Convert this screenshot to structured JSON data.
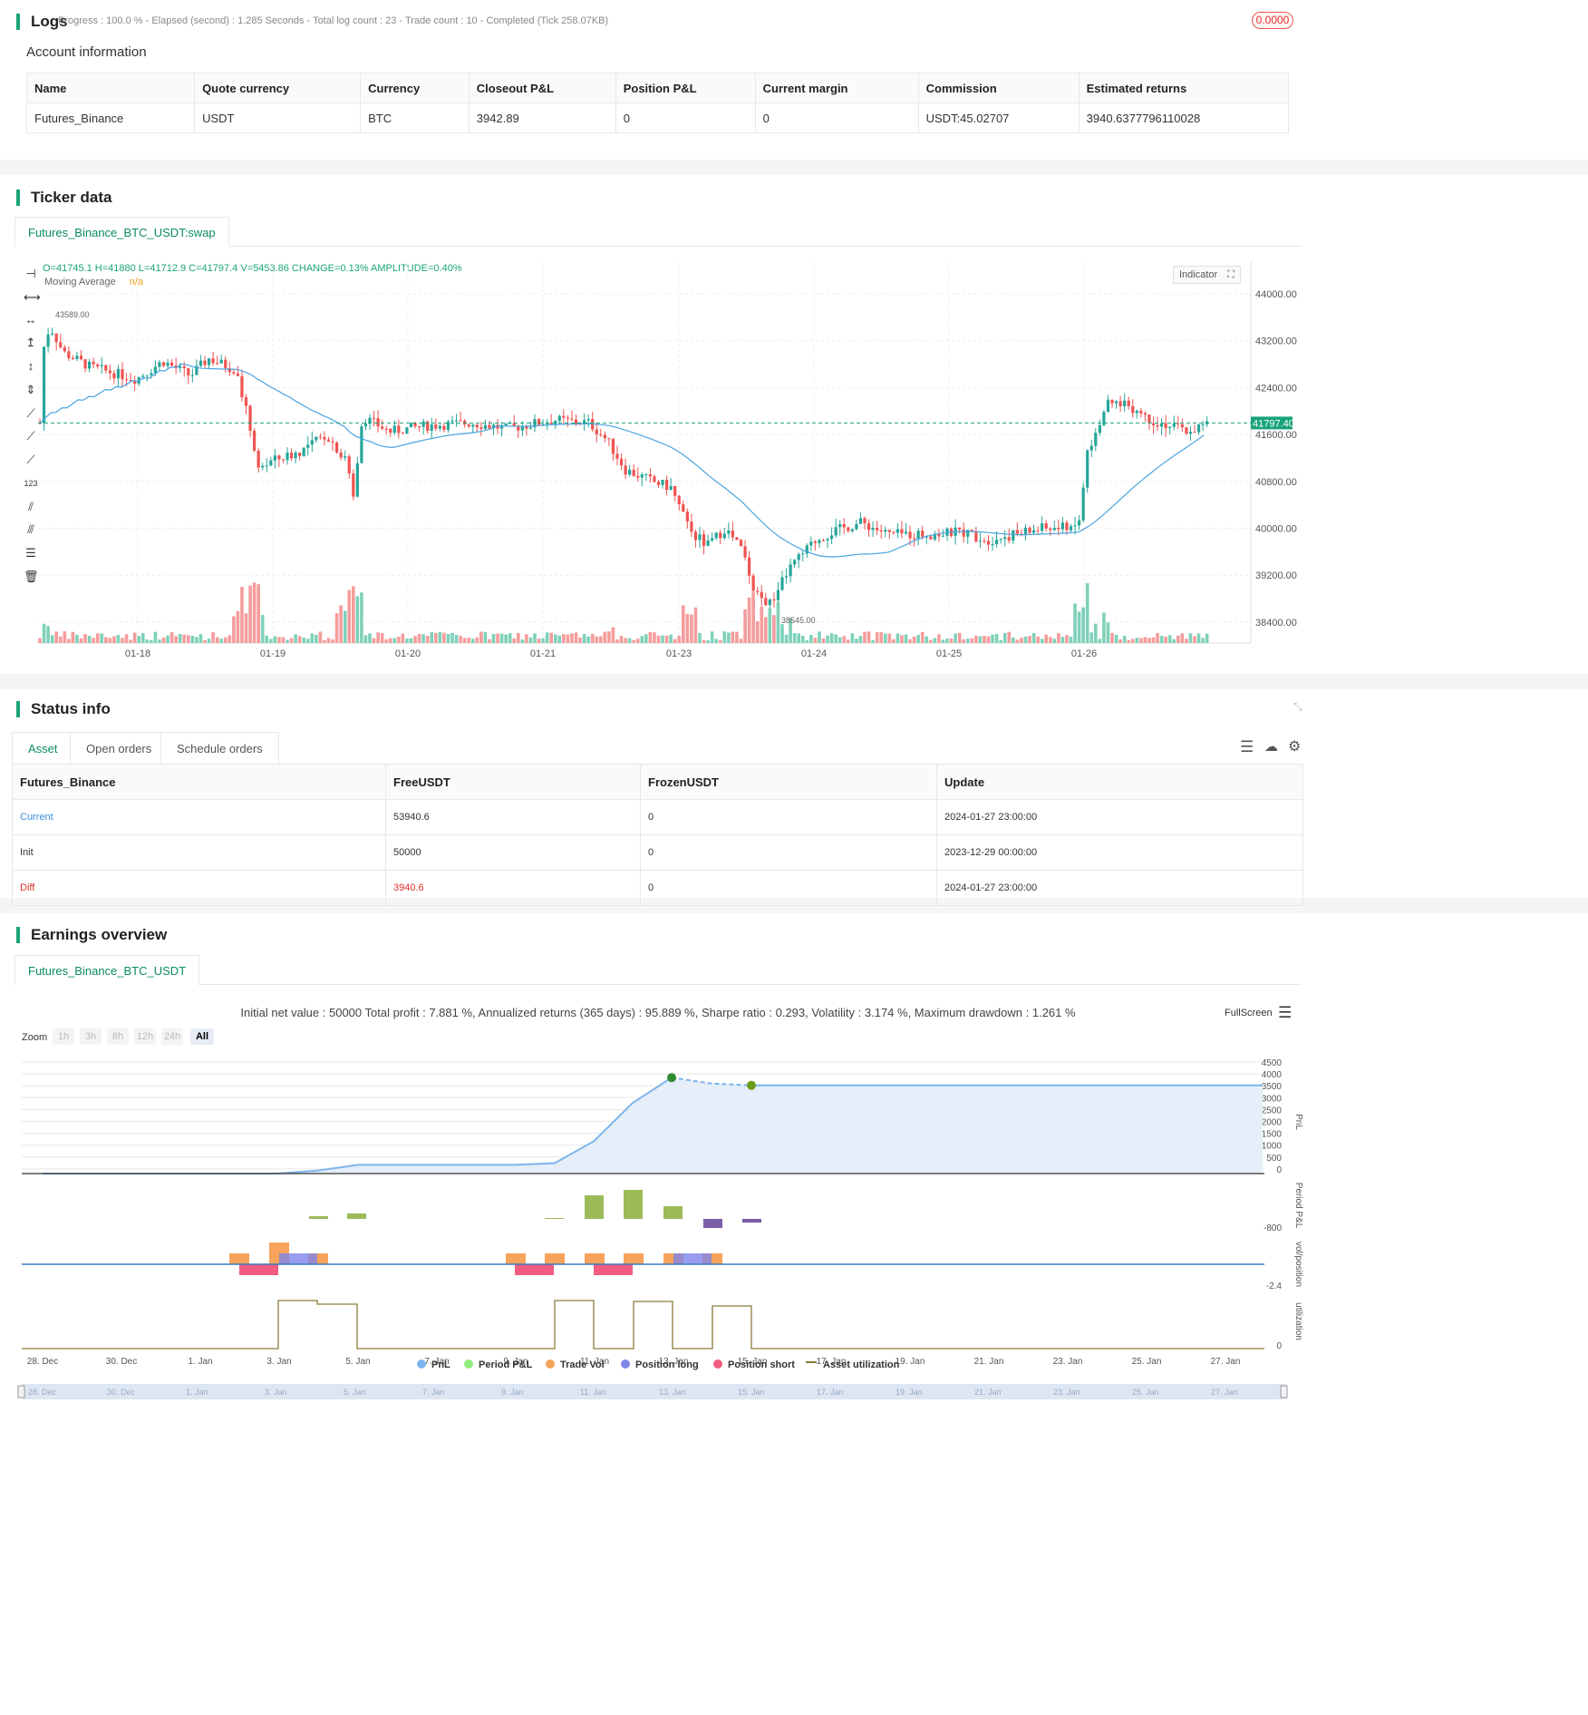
{
  "logs": {
    "title": "Logs",
    "progress": "Progress : 100.0 % - Elapsed (second) : 1.285  Seconds - Total log count : 23 - Trade count : 10 - Completed (Tick 258.07KB)",
    "badge": "0.0000"
  },
  "account": {
    "title": "Account information",
    "headers": [
      "Name",
      "Quote currency",
      "Currency",
      "Closeout P&L",
      "Position P&L",
      "Current margin",
      "Commission",
      "Estimated returns"
    ],
    "row": [
      "Futures_Binance",
      "USDT",
      "BTC",
      "3942.89",
      "0",
      "0",
      "USDT:45.02707",
      "3940.6377796110028"
    ]
  },
  "ticker": {
    "title": "Ticker data",
    "tab": "Futures_Binance_BTC_USDT:swap",
    "ohlc": "O=41745.1 H=41880 L=41712.9 C=41797.4 V=5453.86 CHANGE=0.13% AMPLITUDE=0.40%",
    "ma_label": "Moving Average",
    "ma_value": "n/a",
    "indicator_btn": "Indicator",
    "last_price": "41797.40",
    "high_label": "43589.00",
    "low_label": "38545.00",
    "y_ticks": [
      "44000.00",
      "43200.00",
      "42400.00",
      "41600.00",
      "40800.00",
      "40000.00",
      "39200.00",
      "38400.00"
    ],
    "x_ticks": [
      "01-18",
      "01-19",
      "01-20",
      "01-21",
      "01-23",
      "01-24",
      "01-25",
      "01-26"
    ],
    "colors": {
      "up": "#26a69a",
      "down": "#ef5350",
      "ma": "#4aa3df"
    }
  },
  "status": {
    "title": "Status info",
    "tabs": [
      "Asset",
      "Open orders",
      "Schedule orders"
    ],
    "headers": [
      "Futures_Binance",
      "FreeUSDT",
      "FrozenUSDT",
      "Update"
    ],
    "rows": [
      [
        "Current",
        "53940.6",
        "0",
        "2024-01-27 23:00:00"
      ],
      [
        "Init",
        "50000",
        "0",
        "2023-12-29 00:00:00"
      ],
      [
        "Diff",
        "3940.6",
        "0",
        "2024-01-27 23:00:00"
      ]
    ]
  },
  "earnings": {
    "title": "Earnings overview",
    "tab": "Futures_Binance_BTC_USDT",
    "summary": "Initial net value : 50000 Total profit : 7.881 %, Annualized returns (365 days) : 95.889 %, Sharpe ratio : 0.293, Volatility : 3.174 %, Maximum drawdown : 1.261 %",
    "fullscreen": "FullScreen",
    "zoom_label": "Zoom",
    "zoom_opts": [
      "1h",
      "3h",
      "8h",
      "12h",
      "24h",
      "All"
    ],
    "pnl_ticks": [
      "4500",
      "4000",
      "3500",
      "3000",
      "2500",
      "2000",
      "1500",
      "1000",
      "500",
      "0"
    ],
    "period_tick": "-800",
    "vol_tick": "-2.4",
    "util_tick": "0",
    "axis_names": [
      "PnL",
      "Period P&L",
      "vol/position",
      "utilization"
    ],
    "x_ticks": [
      "28. Dec",
      "30. Dec",
      "1. Jan",
      "3. Jan",
      "5. Jan",
      "7. Jan",
      "9. Jan",
      "11. Jan",
      "13. Jan",
      "15. Jan",
      "17. Jan",
      "19. Jan",
      "21. Jan",
      "23. Jan",
      "25. Jan",
      "27. Jan"
    ],
    "legend": [
      "PnL",
      "Period P&L",
      "Trade Vol",
      "Position long",
      "Position short",
      "Asset utilization"
    ],
    "legend_colors": [
      "#7cb5ec",
      "#90ed7d",
      "#f7a35c",
      "#8085e9",
      "#f15c80",
      "#8b7d3a"
    ]
  }
}
